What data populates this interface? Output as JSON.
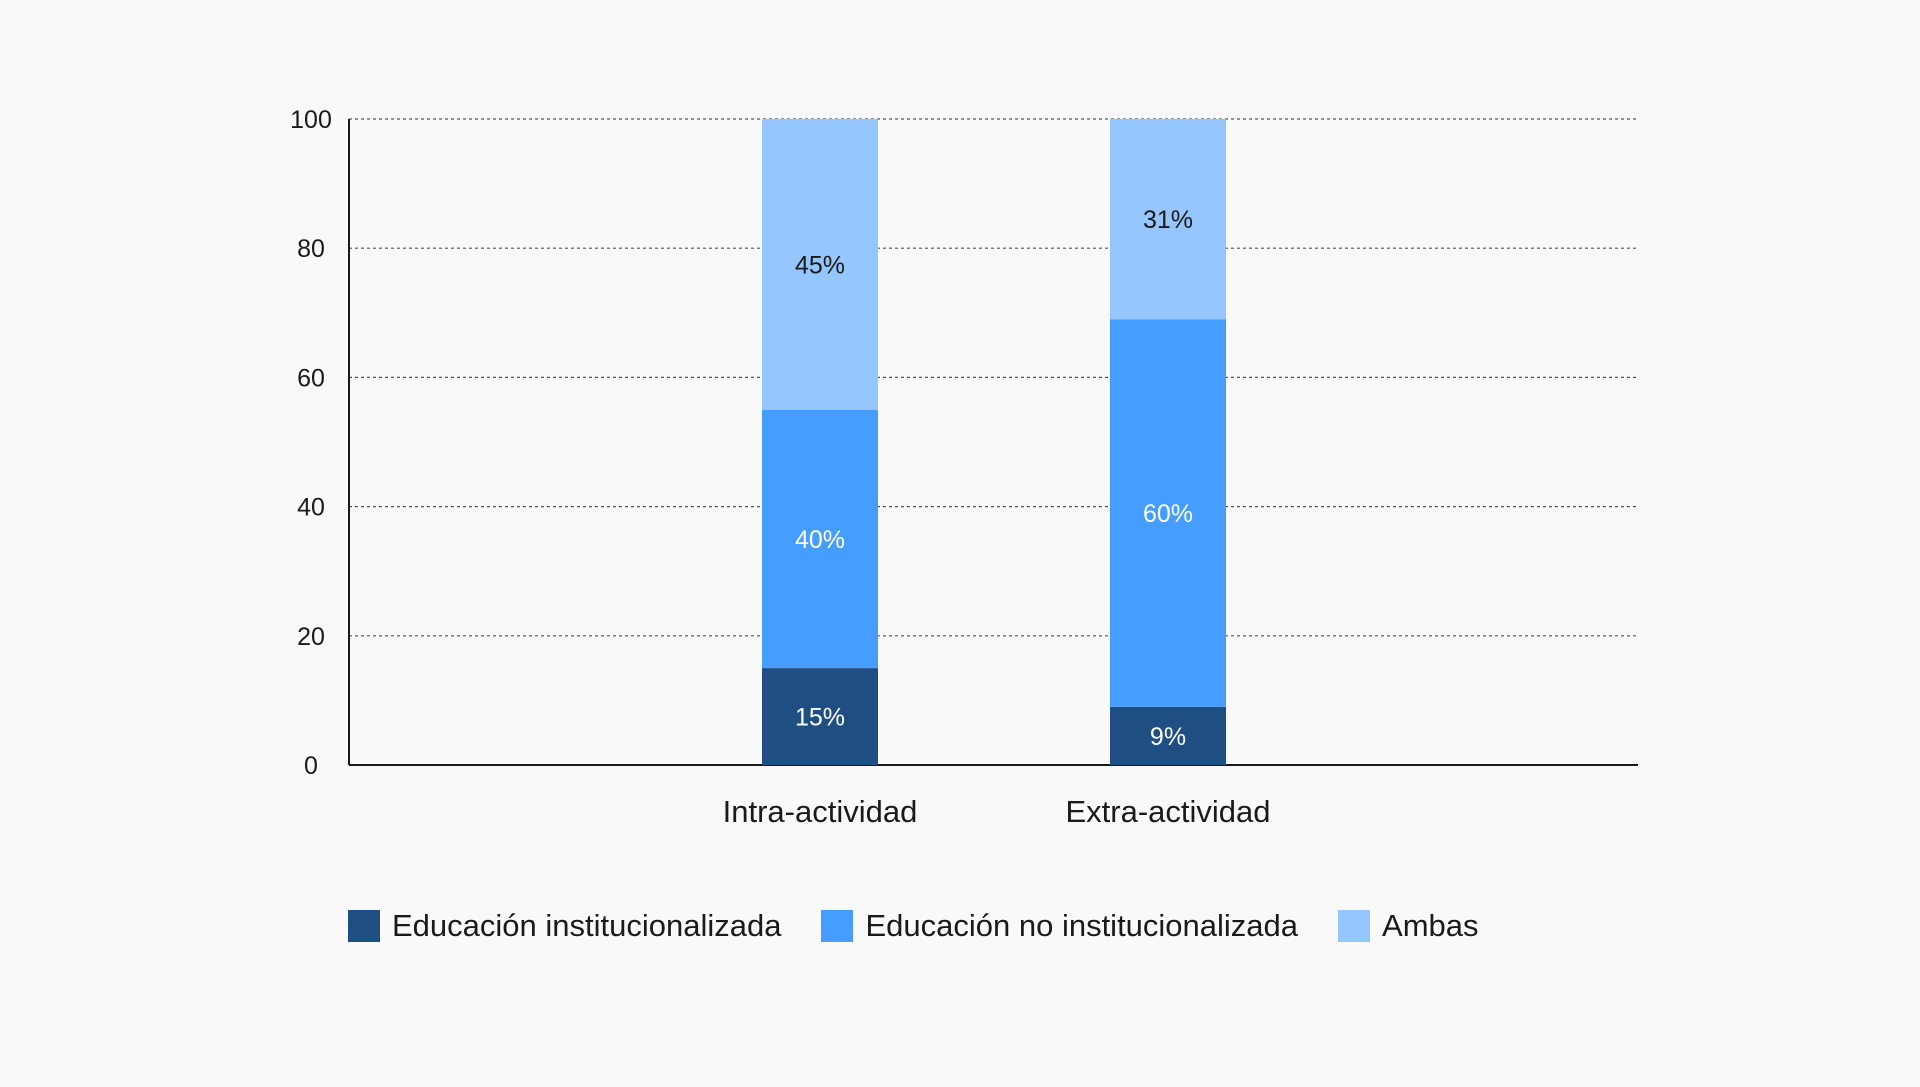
{
  "chart_data": {
    "type": "bar",
    "stacked": true,
    "categories": [
      "Intra-actividad",
      "Extra-actividad"
    ],
    "series": [
      {
        "name": "Educación institucionalizada",
        "values": [
          15,
          9
        ],
        "labels": [
          "15%",
          "9%"
        ],
        "color": "#1f4e82",
        "label_color": "#ffffff"
      },
      {
        "name": "Educación no institucionalizada",
        "values": [
          40,
          60
        ],
        "labels": [
          "40%",
          "60%"
        ],
        "color": "#459dff",
        "label_color": "#ffffff"
      },
      {
        "name": "Ambas",
        "values": [
          45,
          31
        ],
        "labels": [
          "45%",
          "31%"
        ],
        "color": "#95c6ff",
        "label_color": "#1a1a1a"
      }
    ],
    "ylim": [
      0,
      100
    ],
    "yticks": [
      0,
      20,
      40,
      60,
      80,
      100
    ],
    "ytick_labels": [
      "0",
      "20",
      "40",
      "60",
      "80",
      "100"
    ],
    "grid": true,
    "grid_style": "dotted",
    "legend_position": "bottom-left"
  }
}
